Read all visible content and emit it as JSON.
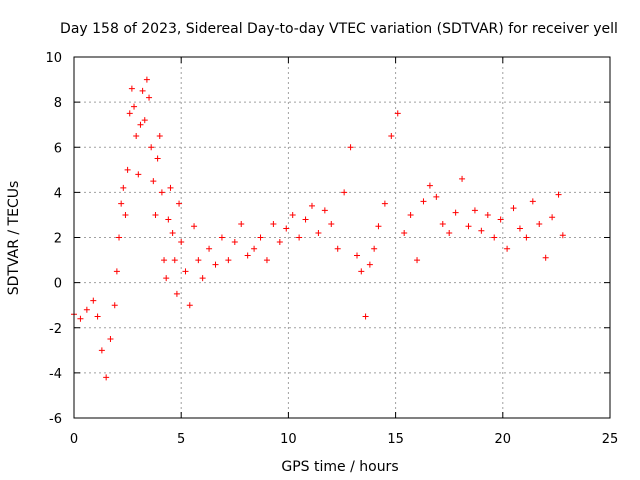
{
  "chart_data": {
    "type": "scatter",
    "title": "Day 158 of 2023, Sidereal Day-to-day VTEC variation (SDTVAR) for receiver yell",
    "xlabel": "GPS time / hours",
    "ylabel": "SDTVAR / TECUs",
    "xlim": [
      0,
      25
    ],
    "ylim": [
      -6,
      10
    ],
    "xticks": [
      "0",
      "5",
      "10",
      "15",
      "20",
      "25"
    ],
    "yticks": [
      "-6",
      "-4",
      "-2",
      "0",
      "2",
      "4",
      "6",
      "8",
      "10"
    ],
    "grid": true,
    "marker": "+",
    "series": [
      {
        "name": "SDTVAR",
        "color": "#ff0000",
        "x": [
          0.0,
          0.3,
          0.6,
          0.9,
          1.1,
          1.3,
          1.5,
          1.7,
          1.9,
          2.0,
          2.1,
          2.2,
          2.3,
          2.4,
          2.5,
          2.6,
          2.7,
          2.8,
          2.9,
          3.0,
          3.1,
          3.2,
          3.3,
          3.4,
          3.5,
          3.6,
          3.7,
          3.8,
          3.9,
          4.0,
          4.1,
          4.2,
          4.3,
          4.4,
          4.5,
          4.6,
          4.7,
          4.8,
          4.9,
          5.0,
          5.2,
          5.4,
          5.6,
          5.8,
          6.0,
          6.3,
          6.6,
          6.9,
          7.2,
          7.5,
          7.8,
          8.1,
          8.4,
          8.7,
          9.0,
          9.3,
          9.6,
          9.9,
          10.2,
          10.5,
          10.8,
          11.1,
          11.4,
          11.7,
          12.0,
          12.3,
          12.6,
          12.9,
          13.2,
          13.4,
          13.6,
          13.8,
          14.0,
          14.2,
          14.5,
          14.8,
          15.1,
          15.4,
          15.7,
          16.0,
          16.3,
          16.6,
          16.9,
          17.2,
          17.5,
          17.8,
          18.1,
          18.4,
          18.7,
          19.0,
          19.3,
          19.6,
          19.9,
          20.2,
          20.5,
          20.8,
          21.1,
          21.4,
          21.7,
          22.0,
          22.3,
          22.6,
          22.8
        ],
        "y": [
          -1.4,
          -1.6,
          -1.2,
          -0.8,
          -1.5,
          -3.0,
          -4.2,
          -2.5,
          -1.0,
          0.5,
          2.0,
          3.5,
          4.2,
          3.0,
          5.0,
          7.5,
          8.6,
          7.8,
          6.5,
          4.8,
          7.0,
          8.5,
          7.2,
          9.0,
          8.2,
          6.0,
          4.5,
          3.0,
          5.5,
          6.5,
          4.0,
          1.0,
          0.2,
          2.8,
          4.2,
          2.2,
          1.0,
          -0.5,
          3.5,
          1.8,
          0.5,
          -1.0,
          2.5,
          1.0,
          0.2,
          1.5,
          0.8,
          2.0,
          1.0,
          1.8,
          2.6,
          1.2,
          1.5,
          2.0,
          1.0,
          2.6,
          1.8,
          2.4,
          3.0,
          2.0,
          2.8,
          3.4,
          2.2,
          3.2,
          2.6,
          1.5,
          4.0,
          6.0,
          1.2,
          0.5,
          -1.5,
          0.8,
          1.5,
          2.5,
          3.5,
          6.5,
          7.5,
          2.2,
          3.0,
          1.0,
          3.6,
          4.3,
          3.8,
          2.6,
          2.2,
          3.1,
          4.6,
          2.5,
          3.2,
          2.3,
          3.0,
          2.0,
          2.8,
          1.5,
          3.3,
          2.4,
          2.0,
          3.6,
          2.6,
          1.1,
          2.9,
          3.9,
          2.1
        ]
      }
    ]
  }
}
